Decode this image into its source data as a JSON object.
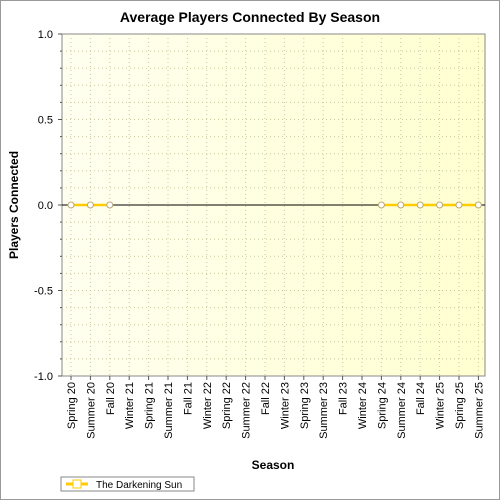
{
  "chart_data": {
    "type": "line",
    "title": "Average Players Connected By Season",
    "xlabel": "Season",
    "ylabel": "Players Connected",
    "ylim": [
      -1.0,
      1.0
    ],
    "yticks": [
      "1.0",
      "0.5",
      "0.0",
      "-0.5",
      "-1.0"
    ],
    "ytick_values": [
      1.0,
      0.5,
      0.0,
      -0.5,
      -1.0
    ],
    "categories": [
      "Spring 20",
      "Summer 20",
      "Fall 20",
      "Winter 21",
      "Spring 21",
      "Summer 21",
      "Fall 21",
      "Winter 22",
      "Spring 22",
      "Summer 22",
      "Fall 22",
      "Winter 23",
      "Spring 23",
      "Summer 23",
      "Fall 23",
      "Winter 24",
      "Spring 24",
      "Summer 24",
      "Fall 24",
      "Winter 25",
      "Spring 25",
      "Summer 25"
    ],
    "series": [
      {
        "name": "The Darkening Sun",
        "color": "#ffcc00",
        "segments": [
          [
            {
              "x": "Spring 20",
              "y": 0
            },
            {
              "x": "Summer 20",
              "y": 0
            },
            {
              "x": "Fall 20",
              "y": 0
            }
          ],
          [
            {
              "x": "Spring 24",
              "y": 0
            },
            {
              "x": "Summer 24",
              "y": 0
            },
            {
              "x": "Fall 24",
              "y": 0
            },
            {
              "x": "Winter 25",
              "y": 0
            },
            {
              "x": "Spring 25",
              "y": 0
            },
            {
              "x": "Summer 25",
              "y": 0
            }
          ]
        ]
      }
    ],
    "grid": true,
    "legend_position": "bottom-left",
    "background_color": "#ffffe0",
    "zero_line_color": "#000000"
  }
}
